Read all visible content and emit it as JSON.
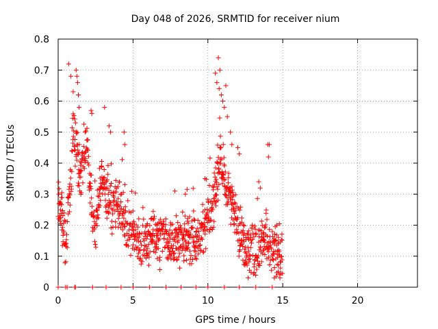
{
  "chart_data": {
    "type": "scatter",
    "title": "Day 048 of 2026, SRMTID for receiver nium",
    "xlabel": "GPS time / hours",
    "ylabel": "SRMTID / TECUs",
    "xlim": [
      0,
      24
    ],
    "ylim": [
      0,
      0.8
    ],
    "xticks": [
      "0",
      "5",
      "10",
      "15",
      "20"
    ],
    "yticks": [
      "0",
      "0.1",
      "0.2",
      "0.3",
      "0.4",
      "0.5",
      "0.6",
      "0.7",
      "0.8"
    ],
    "grid": true,
    "marker": "plus",
    "color": "#ff0000",
    "series": [
      {
        "name": "SRMTID",
        "anchors_x": [
          0.0,
          0.3,
          0.5,
          0.7,
          0.9,
          1.0,
          1.2,
          1.35,
          1.5,
          1.7,
          1.9,
          2.1,
          2.3,
          2.5,
          2.7,
          2.9,
          3.1,
          3.3,
          3.5,
          3.8,
          4.1,
          4.3,
          4.5,
          4.8,
          5.0,
          5.3,
          5.6,
          5.9,
          6.2,
          6.5,
          6.8,
          7.1,
          7.4,
          7.7,
          8.0,
          8.3,
          8.6,
          8.9,
          9.2,
          9.5,
          9.8,
          10.0,
          10.2,
          10.4,
          10.6,
          10.8,
          11.0,
          11.2,
          11.4,
          11.6,
          11.8,
          12.0,
          12.2,
          12.4,
          12.6,
          12.9,
          13.2,
          13.4,
          13.6,
          13.8,
          14.0,
          14.2,
          14.4,
          14.6,
          14.8,
          15.0
        ],
        "anchors_y": [
          0.3,
          0.22,
          0.12,
          0.28,
          0.4,
          0.5,
          0.46,
          0.4,
          0.34,
          0.44,
          0.46,
          0.38,
          0.22,
          0.18,
          0.3,
          0.36,
          0.32,
          0.3,
          0.27,
          0.26,
          0.28,
          0.22,
          0.2,
          0.18,
          0.16,
          0.16,
          0.15,
          0.15,
          0.16,
          0.16,
          0.17,
          0.16,
          0.14,
          0.13,
          0.15,
          0.15,
          0.14,
          0.16,
          0.15,
          0.17,
          0.2,
          0.22,
          0.24,
          0.28,
          0.34,
          0.4,
          0.36,
          0.32,
          0.3,
          0.28,
          0.24,
          0.2,
          0.16,
          0.13,
          0.13,
          0.12,
          0.12,
          0.13,
          0.16,
          0.15,
          0.14,
          0.13,
          0.12,
          0.11,
          0.1,
          0.09
        ],
        "spread": 0.05,
        "spike_points": [
          [
            0.7,
            0.72
          ],
          [
            0.85,
            0.68
          ],
          [
            1.0,
            0.63
          ],
          [
            1.2,
            0.7
          ],
          [
            1.25,
            0.68
          ],
          [
            1.3,
            0.66
          ],
          [
            1.35,
            0.62
          ],
          [
            1.4,
            0.58
          ],
          [
            1.8,
            0.5
          ],
          [
            2.2,
            0.57
          ],
          [
            2.25,
            0.56
          ],
          [
            3.1,
            0.58
          ],
          [
            3.4,
            0.52
          ],
          [
            3.5,
            0.5
          ],
          [
            4.4,
            0.5
          ],
          [
            4.45,
            0.46
          ],
          [
            7.8,
            0.31
          ],
          [
            8.5,
            0.3
          ],
          [
            9.8,
            0.35
          ],
          [
            10.5,
            0.69
          ],
          [
            10.6,
            0.66
          ],
          [
            10.7,
            0.74
          ],
          [
            10.75,
            0.64
          ],
          [
            10.8,
            0.7
          ],
          [
            10.9,
            0.62
          ],
          [
            11.0,
            0.6
          ],
          [
            11.1,
            0.58
          ],
          [
            11.2,
            0.65
          ],
          [
            11.3,
            0.55
          ],
          [
            11.5,
            0.5
          ],
          [
            11.6,
            0.46
          ],
          [
            12.0,
            0.45
          ],
          [
            12.1,
            0.43
          ],
          [
            13.4,
            0.34
          ],
          [
            13.5,
            0.32
          ],
          [
            14.0,
            0.46
          ],
          [
            14.1,
            0.46
          ],
          [
            14.05,
            0.42
          ],
          [
            14.6,
            0.2
          ],
          [
            14.7,
            0.05
          ],
          [
            14.8,
            0.04
          ]
        ],
        "zero_x": [
          0.0,
          0.5,
          0.6,
          1.1,
          1.15,
          2.3,
          3.2,
          4.2,
          5.0,
          6.1,
          7.2,
          8.2,
          9.2,
          10.0,
          11.1,
          12.1,
          13.2,
          14.3
        ]
      }
    ]
  }
}
